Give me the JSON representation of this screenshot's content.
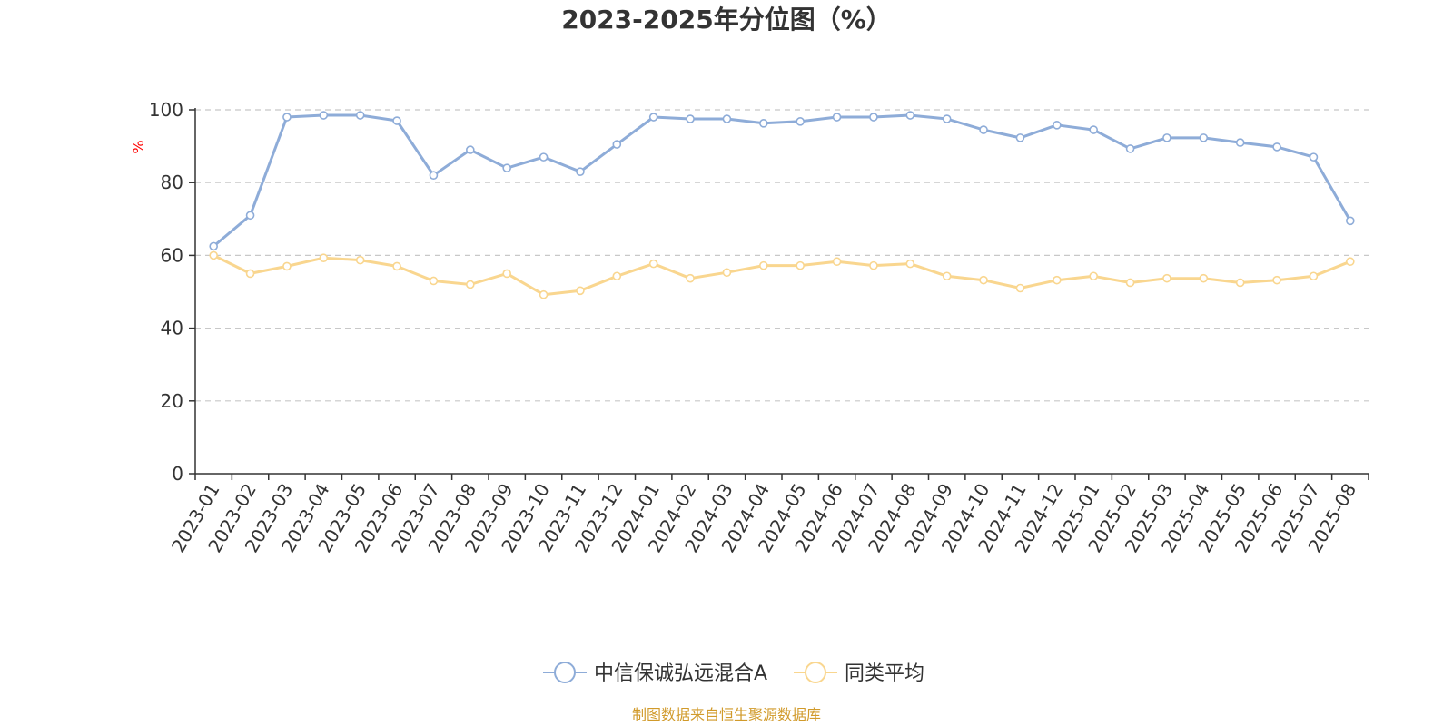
{
  "chart_data": {
    "type": "line",
    "title": "2023-2025年分位图（%）",
    "ylabel": "%",
    "xlabel": "",
    "ylim": [
      0,
      100
    ],
    "yticks": [
      0,
      20,
      40,
      60,
      80,
      100
    ],
    "grid": true,
    "legend_position": "bottom",
    "categories": [
      "2023-01",
      "2023-02",
      "2023-03",
      "2023-04",
      "2023-05",
      "2023-06",
      "2023-07",
      "2023-08",
      "2023-09",
      "2023-10",
      "2023-11",
      "2023-12",
      "2024-01",
      "2024-02",
      "2024-03",
      "2024-04",
      "2024-05",
      "2024-06",
      "2024-07",
      "2024-08",
      "2024-09",
      "2024-10",
      "2024-11",
      "2024-12",
      "2025-01",
      "2025-02",
      "2025-03",
      "2025-04",
      "2025-05",
      "2025-06",
      "2025-07",
      "2025-08"
    ],
    "series": [
      {
        "name": "中信保诚弘远混合A",
        "color": "#8eacd8",
        "values": [
          62.5,
          71,
          98,
          98.5,
          98.5,
          97,
          82,
          89,
          84,
          87,
          83,
          90.5,
          98,
          97.5,
          97.5,
          96.3,
          96.8,
          98,
          98,
          98.5,
          97.5,
          94.5,
          92.3,
          95.8,
          94.5,
          89.3,
          92.3,
          92.3,
          91,
          89.8,
          87,
          69.5
        ]
      },
      {
        "name": "同类平均",
        "color": "#f9d68f",
        "values": [
          60,
          55,
          57,
          59.3,
          58.7,
          57,
          53,
          52,
          55,
          49.2,
          50.3,
          54.3,
          57.7,
          53.7,
          55.3,
          57.2,
          57.2,
          58.3,
          57.2,
          57.7,
          54.3,
          53.2,
          51,
          53.2,
          54.3,
          52.5,
          53.7,
          53.7,
          52.5,
          53.2,
          54.3,
          58.3
        ]
      }
    ]
  },
  "footer": {
    "source": "制图数据来自恒生聚源数据库"
  }
}
